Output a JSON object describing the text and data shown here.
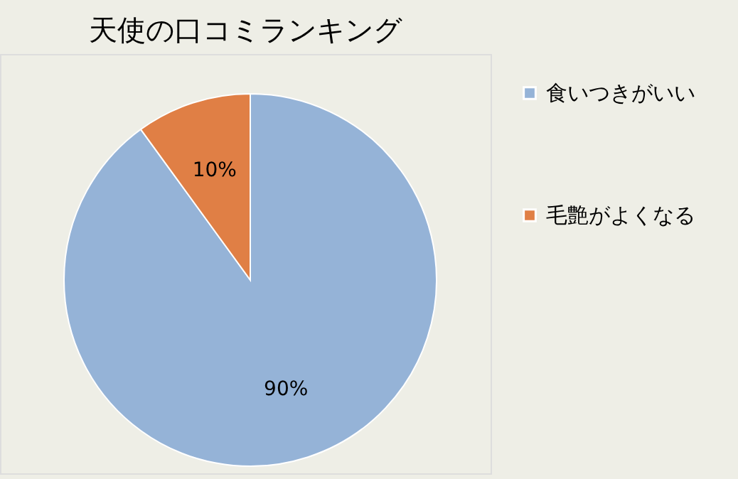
{
  "chart_data": {
    "type": "pie",
    "title": "天使の口コミランキング",
    "categories": [
      "食いつきがいい",
      "毛艶がよくなる"
    ],
    "values": [
      90,
      10
    ],
    "colors": [
      "#95b3d7",
      "#e07f45"
    ],
    "value_labels": [
      "90%",
      "10%"
    ],
    "legend": "right"
  }
}
